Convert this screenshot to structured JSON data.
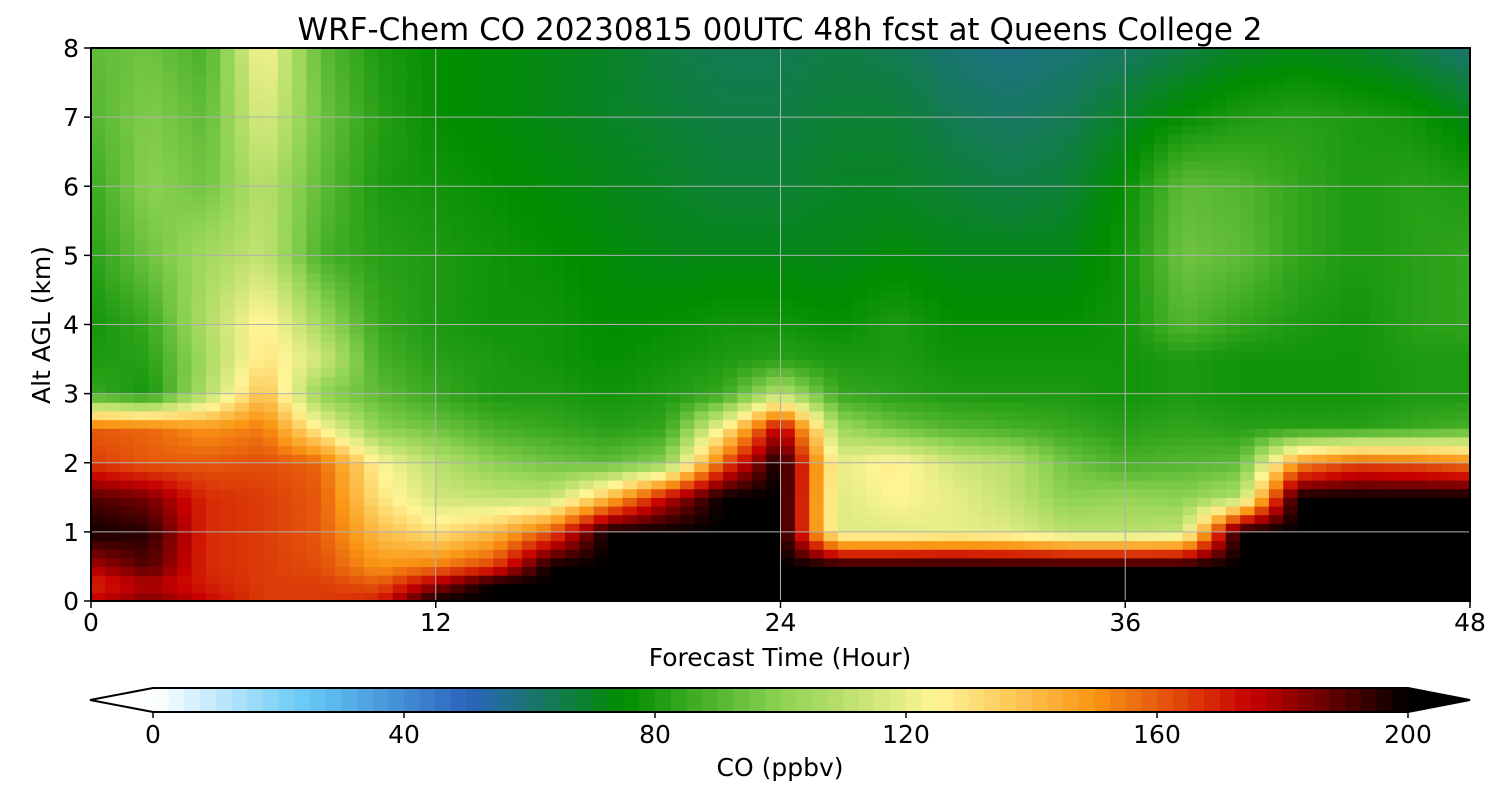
{
  "chart_data": {
    "type": "heatmap",
    "title": "WRF-Chem CO  20230815 00UTC 48h fcst at Queens College 2",
    "xlabel": "Forecast Time (Hour)",
    "ylabel": "Alt AGL (km)",
    "xlim": [
      0,
      48
    ],
    "ylim": [
      0,
      8
    ],
    "xticks": [
      "0",
      "12",
      "24",
      "36",
      "48"
    ],
    "yticks": [
      "0",
      "1",
      "2",
      "3",
      "4",
      "5",
      "6",
      "7",
      "8"
    ],
    "grid": true,
    "x": [
      0,
      2,
      4,
      6,
      8,
      10,
      12,
      14,
      16,
      18,
      20,
      22,
      24,
      26,
      28,
      30,
      32,
      34,
      36,
      38,
      40,
      42,
      44,
      46,
      48
    ],
    "y": [
      0,
      0.25,
      0.5,
      1,
      1.5,
      2,
      2.5,
      3,
      3.5,
      4,
      5,
      6,
      7,
      8
    ],
    "z": [
      [
        175,
        185,
        175,
        165,
        165,
        170,
        200,
        200,
        200,
        200,
        200,
        200,
        200,
        200,
        200,
        200,
        200,
        200,
        200,
        200,
        200,
        200,
        200,
        200,
        200
      ],
      [
        168,
        178,
        170,
        165,
        165,
        160,
        180,
        200,
        200,
        200,
        200,
        200,
        200,
        200,
        200,
        200,
        200,
        200,
        200,
        200,
        200,
        200,
        200,
        200,
        200
      ],
      [
        178,
        190,
        168,
        165,
        162,
        150,
        155,
        165,
        200,
        200,
        200,
        200,
        200,
        200,
        200,
        200,
        200,
        200,
        200,
        200,
        200,
        200,
        200,
        200,
        200
      ],
      [
        198,
        195,
        168,
        165,
        160,
        140,
        130,
        140,
        160,
        200,
        200,
        200,
        200,
        118,
        118,
        120,
        118,
        110,
        110,
        112,
        200,
        200,
        200,
        200,
        200
      ],
      [
        190,
        185,
        168,
        165,
        160,
        130,
        115,
        112,
        112,
        140,
        175,
        200,
        200,
        118,
        125,
        120,
        112,
        100,
        102,
        100,
        108,
        200,
        200,
        200,
        200
      ],
      [
        165,
        160,
        160,
        162,
        158,
        125,
        110,
        100,
        95,
        92,
        100,
        160,
        200,
        120,
        128,
        115,
        110,
        95,
        88,
        90,
        92,
        150,
        162,
        160,
        155
      ],
      [
        160,
        158,
        150,
        155,
        125,
        100,
        95,
        88,
        85,
        82,
        84,
        125,
        180,
        105,
        95,
        90,
        88,
        85,
        82,
        84,
        82,
        82,
        82,
        85,
        88
      ],
      [
        85,
        78,
        108,
        140,
        100,
        92,
        85,
        80,
        80,
        78,
        80,
        85,
        110,
        85,
        82,
        80,
        80,
        80,
        78,
        80,
        78,
        78,
        78,
        80,
        80
      ],
      [
        80,
        82,
        105,
        130,
        115,
        88,
        82,
        80,
        78,
        76,
        78,
        80,
        82,
        80,
        80,
        78,
        78,
        78,
        78,
        80,
        78,
        78,
        78,
        80,
        80
      ],
      [
        78,
        85,
        108,
        128,
        105,
        85,
        80,
        78,
        78,
        75,
        76,
        78,
        78,
        76,
        80,
        76,
        76,
        76,
        78,
        90,
        84,
        80,
        78,
        82,
        84
      ],
      [
        82,
        95,
        105,
        112,
        88,
        82,
        80,
        78,
        76,
        74,
        72,
        72,
        72,
        72,
        74,
        72,
        72,
        72,
        78,
        95,
        92,
        84,
        80,
        82,
        84
      ],
      [
        85,
        100,
        95,
        110,
        92,
        80,
        78,
        76,
        74,
        72,
        70,
        68,
        68,
        70,
        70,
        68,
        66,
        68,
        76,
        92,
        90,
        84,
        80,
        82,
        80
      ],
      [
        90,
        98,
        92,
        118,
        95,
        82,
        76,
        74,
        72,
        70,
        68,
        66,
        66,
        68,
        68,
        64,
        62,
        64,
        70,
        76,
        80,
        82,
        80,
        78,
        72
      ],
      [
        92,
        95,
        88,
        125,
        92,
        80,
        76,
        74,
        72,
        70,
        66,
        64,
        64,
        66,
        64,
        60,
        58,
        60,
        62,
        66,
        70,
        72,
        70,
        66,
        60
      ]
    ],
    "colorbar": {
      "label": "CO  (ppbv)",
      "min": 0,
      "max": 200,
      "ticks": [
        "0",
        "40",
        "80",
        "120",
        "160",
        "200"
      ],
      "extend": "both",
      "colors": [
        "#ffffff",
        "#64c8f5",
        "#2c64be",
        "#008c00",
        "#8cd250",
        "#fff596",
        "#fa9614",
        "#c80000",
        "#000000"
      ]
    }
  }
}
